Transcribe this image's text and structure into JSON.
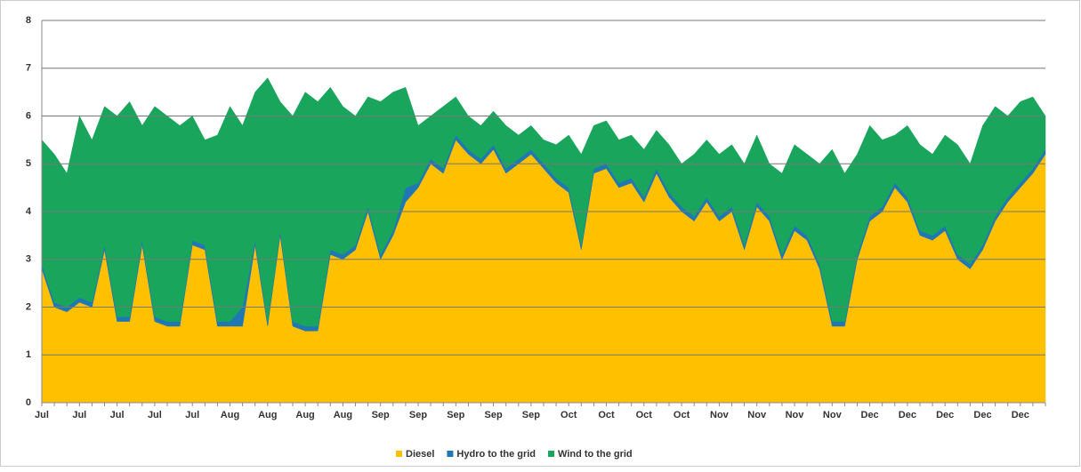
{
  "chart_data": {
    "type": "stacked_area",
    "categories": [
      "Jul",
      null,
      null,
      "Jul",
      null,
      null,
      "Jul",
      null,
      null,
      "Jul",
      null,
      null,
      "Jul",
      null,
      null,
      "Aug",
      null,
      null,
      "Aug",
      null,
      null,
      "Aug",
      null,
      null,
      "Aug",
      null,
      null,
      "Sep",
      null,
      null,
      "Sep",
      null,
      null,
      "Sep",
      null,
      null,
      "Sep",
      null,
      null,
      "Sep",
      null,
      null,
      "Oct",
      null,
      null,
      "Oct",
      null,
      null,
      "Oct",
      null,
      null,
      "Oct",
      null,
      null,
      "Nov",
      null,
      null,
      "Nov",
      null,
      null,
      "Nov",
      null,
      null,
      "Nov",
      null,
      null,
      "Dec",
      null,
      null,
      "Dec",
      null,
      null,
      "Dec",
      null,
      null,
      "Dec",
      null,
      null,
      "Dec",
      null,
      null
    ],
    "series": [
      {
        "name": "Diesel",
        "color": "#ffc000",
        "values": [
          2.8,
          2.0,
          1.9,
          2.1,
          2.0,
          3.2,
          1.7,
          1.7,
          3.3,
          1.7,
          1.6,
          1.6,
          3.3,
          3.2,
          1.6,
          1.6,
          1.6,
          3.3,
          1.6,
          3.5,
          1.6,
          1.5,
          1.5,
          3.1,
          3.0,
          3.2,
          4.0,
          3.0,
          3.5,
          4.2,
          4.5,
          5.0,
          4.8,
          5.5,
          5.2,
          5.0,
          5.3,
          4.8,
          5.0,
          5.2,
          4.9,
          4.6,
          4.4,
          3.2,
          4.8,
          4.9,
          4.5,
          4.6,
          4.2,
          4.8,
          4.3,
          4.0,
          3.8,
          4.2,
          3.8,
          4.0,
          3.2,
          4.1,
          3.8,
          3.0,
          3.6,
          3.4,
          2.8,
          1.6,
          1.6,
          3.0,
          3.8,
          4.0,
          4.5,
          4.2,
          3.5,
          3.4,
          3.6,
          3.0,
          2.8,
          3.2,
          3.8,
          4.2,
          4.5,
          4.8,
          5.2
        ]
      },
      {
        "name": "Hydro to the grid",
        "color": "#1f77b4",
        "values": [
          0.1,
          0.1,
          0.1,
          0.1,
          0.1,
          0.1,
          0.1,
          0.1,
          0.1,
          0.1,
          0.1,
          0.1,
          0.1,
          0.1,
          0.1,
          0.1,
          0.4,
          0.1,
          0.1,
          0.1,
          0.1,
          0.1,
          0.1,
          0.1,
          0.1,
          0.1,
          0.1,
          0.1,
          0.1,
          0.3,
          0.1,
          0.1,
          0.1,
          0.1,
          0.1,
          0.1,
          0.1,
          0.1,
          0.1,
          0.1,
          0.1,
          0.1,
          0.1,
          0.1,
          0.1,
          0.1,
          0.1,
          0.1,
          0.1,
          0.1,
          0.1,
          0.1,
          0.1,
          0.1,
          0.1,
          0.1,
          0.1,
          0.1,
          0.1,
          0.1,
          0.1,
          0.1,
          0.1,
          0.1,
          0.1,
          0.1,
          0.1,
          0.1,
          0.1,
          0.1,
          0.1,
          0.1,
          0.1,
          0.1,
          0.1,
          0.1,
          0.1,
          0.1,
          0.1,
          0.1,
          0.1
        ]
      },
      {
        "name": "Wind to the grid",
        "color": "#1aa55c",
        "values": [
          2.6,
          3.1,
          2.8,
          3.8,
          3.4,
          2.9,
          4.2,
          4.5,
          2.4,
          4.4,
          4.3,
          4.1,
          2.6,
          2.2,
          3.9,
          4.5,
          3.8,
          3.1,
          5.1,
          2.7,
          4.3,
          4.9,
          4.7,
          3.4,
          3.1,
          2.7,
          2.3,
          3.2,
          2.9,
          2.1,
          1.2,
          0.9,
          1.3,
          0.8,
          0.7,
          0.7,
          0.7,
          0.9,
          0.5,
          0.5,
          0.5,
          0.7,
          1.1,
          1.9,
          0.9,
          0.9,
          0.9,
          0.9,
          1.0,
          0.8,
          1.0,
          0.9,
          1.3,
          1.2,
          1.3,
          1.3,
          1.7,
          1.4,
          1.1,
          1.7,
          1.7,
          1.7,
          2.1,
          3.6,
          3.1,
          2.1,
          1.9,
          1.4,
          1.0,
          1.5,
          1.8,
          1.7,
          1.9,
          2.3,
          2.1,
          2.5,
          2.3,
          1.7,
          1.7,
          1.5,
          0.7
        ]
      }
    ],
    "ylim": [
      0,
      8
    ],
    "yticks": [
      0,
      1,
      2,
      3,
      4,
      5,
      6,
      7,
      8
    ],
    "grid": true,
    "legend": "bottom"
  }
}
